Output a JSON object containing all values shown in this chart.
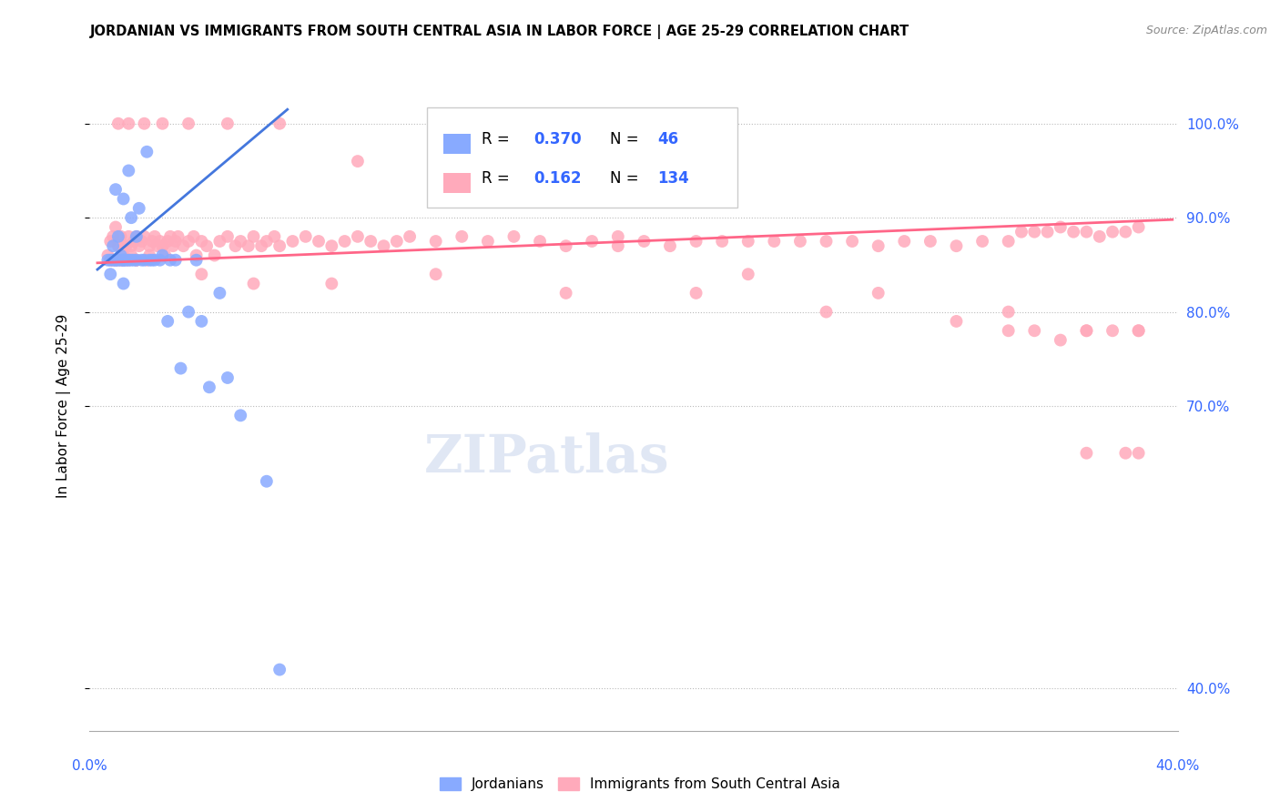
{
  "title": "JORDANIAN VS IMMIGRANTS FROM SOUTH CENTRAL ASIA IN LABOR FORCE | AGE 25-29 CORRELATION CHART",
  "source": "Source: ZipAtlas.com",
  "ylabel": "In Labor Force | Age 25-29",
  "ytick_vals": [
    0.4,
    0.7,
    0.8,
    0.9,
    1.0
  ],
  "ytick_labels": [
    "40.0%",
    "70.0%",
    "80.0%",
    "90.0%",
    "100.0%"
  ],
  "xlim": [
    -0.003,
    0.415
  ],
  "ylim": [
    0.355,
    1.045
  ],
  "blue_color": "#88aaff",
  "pink_color": "#ffaabb",
  "blue_line_color": "#4477dd",
  "pink_line_color": "#ff6688",
  "tick_color": "#3366ff",
  "legend_R_blue": "0.370",
  "legend_N_blue": "46",
  "legend_R_pink": "0.162",
  "legend_N_pink": "134",
  "blue_x": [
    0.004,
    0.005,
    0.005,
    0.006,
    0.006,
    0.007,
    0.007,
    0.007,
    0.008,
    0.008,
    0.009,
    0.009,
    0.01,
    0.01,
    0.01,
    0.01,
    0.011,
    0.012,
    0.012,
    0.013,
    0.013,
    0.014,
    0.015,
    0.015,
    0.016,
    0.017,
    0.018,
    0.019,
    0.02,
    0.021,
    0.022,
    0.024,
    0.025,
    0.027,
    0.028,
    0.03,
    0.032,
    0.035,
    0.038,
    0.04,
    0.043,
    0.047,
    0.05,
    0.055,
    0.065,
    0.07
  ],
  "blue_y": [
    0.855,
    0.855,
    0.84,
    0.855,
    0.87,
    0.855,
    0.855,
    0.93,
    0.88,
    0.855,
    0.855,
    0.86,
    0.855,
    0.83,
    0.855,
    0.92,
    0.855,
    0.95,
    0.855,
    0.9,
    0.855,
    0.855,
    0.88,
    0.855,
    0.91,
    0.855,
    0.855,
    0.97,
    0.855,
    0.855,
    0.855,
    0.855,
    0.86,
    0.79,
    0.855,
    0.855,
    0.74,
    0.8,
    0.855,
    0.79,
    0.72,
    0.82,
    0.73,
    0.69,
    0.62,
    0.42
  ],
  "pink_x": [
    0.004,
    0.005,
    0.005,
    0.006,
    0.006,
    0.007,
    0.007,
    0.008,
    0.008,
    0.009,
    0.009,
    0.01,
    0.01,
    0.01,
    0.011,
    0.011,
    0.012,
    0.012,
    0.013,
    0.013,
    0.014,
    0.015,
    0.015,
    0.016,
    0.017,
    0.018,
    0.019,
    0.02,
    0.02,
    0.021,
    0.022,
    0.023,
    0.024,
    0.025,
    0.026,
    0.027,
    0.028,
    0.029,
    0.03,
    0.031,
    0.033,
    0.035,
    0.037,
    0.038,
    0.04,
    0.042,
    0.045,
    0.047,
    0.05,
    0.053,
    0.055,
    0.058,
    0.06,
    0.063,
    0.065,
    0.068,
    0.07,
    0.075,
    0.08,
    0.085,
    0.09,
    0.095,
    0.1,
    0.105,
    0.11,
    0.115,
    0.12,
    0.13,
    0.14,
    0.15,
    0.16,
    0.17,
    0.18,
    0.19,
    0.2,
    0.21,
    0.22,
    0.23,
    0.24,
    0.25,
    0.26,
    0.27,
    0.28,
    0.29,
    0.3,
    0.31,
    0.32,
    0.33,
    0.34,
    0.35,
    0.355,
    0.36,
    0.365,
    0.37,
    0.375,
    0.38,
    0.385,
    0.39,
    0.395,
    0.4,
    0.008,
    0.012,
    0.018,
    0.025,
    0.035,
    0.05,
    0.07,
    0.1,
    0.15,
    0.2,
    0.25,
    0.3,
    0.35,
    0.38,
    0.4,
    0.015,
    0.025,
    0.04,
    0.06,
    0.09,
    0.13,
    0.18,
    0.23,
    0.28,
    0.33,
    0.38,
    0.35,
    0.36,
    0.37,
    0.39,
    0.4,
    0.38,
    0.395,
    0.4
  ],
  "pink_y": [
    0.86,
    0.855,
    0.875,
    0.88,
    0.855,
    0.89,
    0.855,
    0.87,
    0.855,
    0.88,
    0.855,
    0.87,
    0.855,
    0.86,
    0.87,
    0.855,
    0.88,
    0.855,
    0.87,
    0.86,
    0.875,
    0.88,
    0.855,
    0.87,
    0.875,
    0.88,
    0.855,
    0.87,
    0.86,
    0.875,
    0.88,
    0.87,
    0.875,
    0.87,
    0.86,
    0.875,
    0.88,
    0.87,
    0.875,
    0.88,
    0.87,
    0.875,
    0.88,
    0.86,
    0.875,
    0.87,
    0.86,
    0.875,
    0.88,
    0.87,
    0.875,
    0.87,
    0.88,
    0.87,
    0.875,
    0.88,
    0.87,
    0.875,
    0.88,
    0.875,
    0.87,
    0.875,
    0.88,
    0.875,
    0.87,
    0.875,
    0.88,
    0.875,
    0.88,
    0.875,
    0.88,
    0.875,
    0.87,
    0.875,
    0.87,
    0.875,
    0.87,
    0.875,
    0.875,
    0.875,
    0.875,
    0.875,
    0.875,
    0.875,
    0.87,
    0.875,
    0.875,
    0.87,
    0.875,
    0.875,
    0.885,
    0.885,
    0.885,
    0.89,
    0.885,
    0.885,
    0.88,
    0.885,
    0.885,
    0.89,
    1.0,
    1.0,
    1.0,
    1.0,
    1.0,
    1.0,
    1.0,
    0.96,
    0.93,
    0.88,
    0.84,
    0.82,
    0.8,
    0.78,
    0.78,
    0.855,
    0.87,
    0.84,
    0.83,
    0.83,
    0.84,
    0.82,
    0.82,
    0.8,
    0.79,
    0.78,
    0.78,
    0.78,
    0.77,
    0.78,
    0.78,
    0.65,
    0.65,
    0.65
  ],
  "blue_trend_x": [
    0.0,
    0.073
  ],
  "blue_trend_y": [
    0.845,
    1.015
  ],
  "pink_trend_x": [
    0.0,
    0.413
  ],
  "pink_trend_y": [
    0.852,
    0.898
  ]
}
